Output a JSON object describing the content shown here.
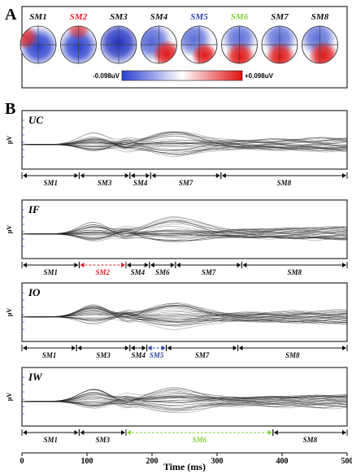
{
  "figure": {
    "panel_a_label": "A",
    "panel_b_label": "B",
    "maps": [
      {
        "label": "SM1",
        "color": "#111111",
        "pattern": "blue-center"
      },
      {
        "label": "SM2",
        "color": "#e0202a",
        "pattern": "red-top"
      },
      {
        "label": "SM3",
        "color": "#111111",
        "pattern": "blue-center-deep"
      },
      {
        "label": "SM4",
        "color": "#111111",
        "pattern": "red-right"
      },
      {
        "label": "SM5",
        "color": "#2a3fa8",
        "pattern": "red-bottom-right"
      },
      {
        "label": "SM6",
        "color": "#7fd23a",
        "pattern": "red-bottom-wide"
      },
      {
        "label": "SM7",
        "color": "#111111",
        "pattern": "red-bottom-wide"
      },
      {
        "label": "SM8",
        "color": "#111111",
        "pattern": "red-bottom-right-wide"
      }
    ],
    "colorbar": {
      "min_label": "-0.098uV",
      "max_label": "+0.098uV",
      "min_color": "#2a3fd0",
      "max_color": "#e01010"
    },
    "y_unit": "μV",
    "x_axis_title": "Time (ms)",
    "x_range": [
      0,
      500
    ],
    "x_ticks": [
      "0",
      "100",
      "200",
      "300",
      "400",
      "500"
    ],
    "conditions": [
      {
        "label": "UC",
        "segments": [
          {
            "label": "SM1",
            "start": 0,
            "end": 88,
            "color": "#111111"
          },
          {
            "label": "SM3",
            "start": 88,
            "end": 166,
            "color": "#111111"
          },
          {
            "label": "SM4",
            "start": 166,
            "end": 198,
            "color": "#111111"
          },
          {
            "label": "SM7",
            "start": 198,
            "end": 306,
            "color": "#111111"
          },
          {
            "label": "SM8",
            "start": 306,
            "end": 500,
            "color": "#111111"
          }
        ]
      },
      {
        "label": "IF",
        "segments": [
          {
            "label": "SM1",
            "start": 0,
            "end": 88,
            "color": "#111111"
          },
          {
            "label": "SM2",
            "start": 88,
            "end": 160,
            "color": "#e0202a"
          },
          {
            "label": "SM4",
            "start": 160,
            "end": 196,
            "color": "#111111"
          },
          {
            "label": "SM6",
            "start": 196,
            "end": 236,
            "color": "#111111"
          },
          {
            "label": "SM7",
            "start": 236,
            "end": 338,
            "color": "#111111"
          },
          {
            "label": "SM8",
            "start": 338,
            "end": 500,
            "color": "#111111"
          }
        ]
      },
      {
        "label": "IO",
        "segments": [
          {
            "label": "SM1",
            "start": 0,
            "end": 84,
            "color": "#111111"
          },
          {
            "label": "SM3",
            "start": 84,
            "end": 166,
            "color": "#111111"
          },
          {
            "label": "SM4",
            "start": 166,
            "end": 192,
            "color": "#111111"
          },
          {
            "label": "SM5",
            "start": 192,
            "end": 222,
            "color": "#2a3fa8"
          },
          {
            "label": "SM7",
            "start": 222,
            "end": 332,
            "color": "#111111"
          },
          {
            "label": "SM8",
            "start": 332,
            "end": 500,
            "color": "#111111"
          }
        ]
      },
      {
        "label": "IW",
        "segments": [
          {
            "label": "SM1",
            "start": 0,
            "end": 88,
            "color": "#111111"
          },
          {
            "label": "SM3",
            "start": 88,
            "end": 160,
            "color": "#111111"
          },
          {
            "label": "SM6",
            "start": 160,
            "end": 386,
            "color": "#7fd23a"
          },
          {
            "label": "SM8",
            "start": 386,
            "end": 500,
            "color": "#111111"
          }
        ]
      }
    ]
  }
}
